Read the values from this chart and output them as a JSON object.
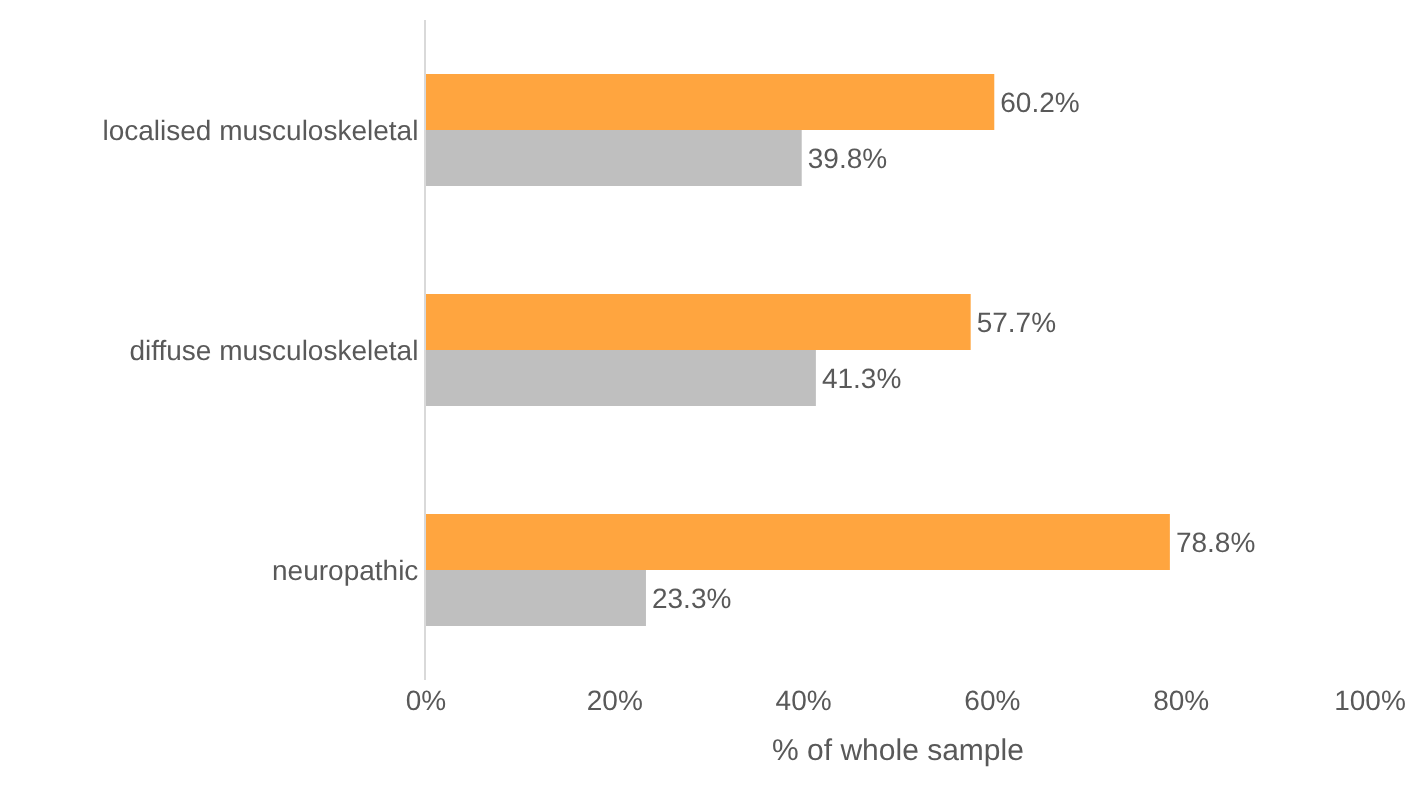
{
  "chart_data": {
    "type": "bar",
    "orientation": "horizontal",
    "xlabel": "% of whole sample",
    "categories": [
      "localised musculoskeletal",
      "diffuse musculoskeletal",
      "neuropathic"
    ],
    "series": [
      {
        "color": "#ffa53f",
        "values": [
          60.2,
          57.7,
          78.8
        ],
        "value_labels": [
          "60.2%",
          "57.7%",
          "78.8%"
        ]
      },
      {
        "color": "#bfbfbf",
        "values": [
          39.8,
          41.3,
          23.3
        ],
        "value_labels": [
          "39.8%",
          "41.3%",
          "23.3%"
        ]
      }
    ],
    "xlim": [
      0,
      100
    ],
    "xticks": [
      {
        "value": 0,
        "label": "0%"
      },
      {
        "value": 20,
        "label": "20%"
      },
      {
        "value": 40,
        "label": "40%"
      },
      {
        "value": 60,
        "label": "60%"
      },
      {
        "value": 80,
        "label": "80%"
      },
      {
        "value": 100,
        "label": "100%"
      }
    ],
    "grid": false
  }
}
